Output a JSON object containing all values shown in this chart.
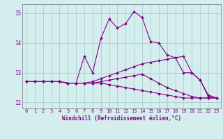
{
  "xlabel": "Windchill (Refroidissement éolien,°C)",
  "background_color": "#d4eeed",
  "grid_color": "#aacfcd",
  "line_color": "#880088",
  "xlim": [
    -0.5,
    23.5
  ],
  "ylim": [
    11.8,
    15.3
  ],
  "yticks": [
    12,
    13,
    14,
    15
  ],
  "xticks": [
    0,
    1,
    2,
    3,
    4,
    5,
    6,
    7,
    8,
    9,
    10,
    11,
    12,
    13,
    14,
    15,
    16,
    17,
    18,
    19,
    20,
    21,
    22,
    23
  ],
  "series": [
    [
      12.7,
      12.7,
      12.7,
      12.7,
      12.7,
      12.65,
      12.65,
      13.55,
      13.0,
      14.15,
      14.8,
      14.5,
      14.65,
      15.05,
      14.85,
      14.05,
      14.0,
      13.6,
      13.5,
      13.0,
      13.0,
      12.75,
      12.2,
      12.15
    ],
    [
      12.7,
      12.7,
      12.7,
      12.7,
      12.7,
      12.65,
      12.65,
      12.65,
      12.7,
      12.8,
      12.9,
      13.0,
      13.1,
      13.2,
      13.3,
      13.35,
      13.4,
      13.45,
      13.5,
      13.55,
      13.0,
      12.75,
      12.25,
      12.15
    ],
    [
      12.7,
      12.7,
      12.7,
      12.7,
      12.7,
      12.65,
      12.65,
      12.65,
      12.65,
      12.7,
      12.75,
      12.8,
      12.85,
      12.9,
      12.95,
      12.8,
      12.65,
      12.5,
      12.4,
      12.3,
      12.2,
      12.15,
      12.15,
      12.15
    ],
    [
      12.7,
      12.7,
      12.7,
      12.7,
      12.7,
      12.65,
      12.65,
      12.65,
      12.65,
      12.65,
      12.6,
      12.55,
      12.5,
      12.45,
      12.4,
      12.35,
      12.3,
      12.25,
      12.2,
      12.15,
      12.15,
      12.15,
      12.15,
      12.15
    ]
  ],
  "tick_fontsize": 5.0,
  "xlabel_fontsize": 5.5,
  "tick_color": "#880088",
  "spine_color": "#888899"
}
